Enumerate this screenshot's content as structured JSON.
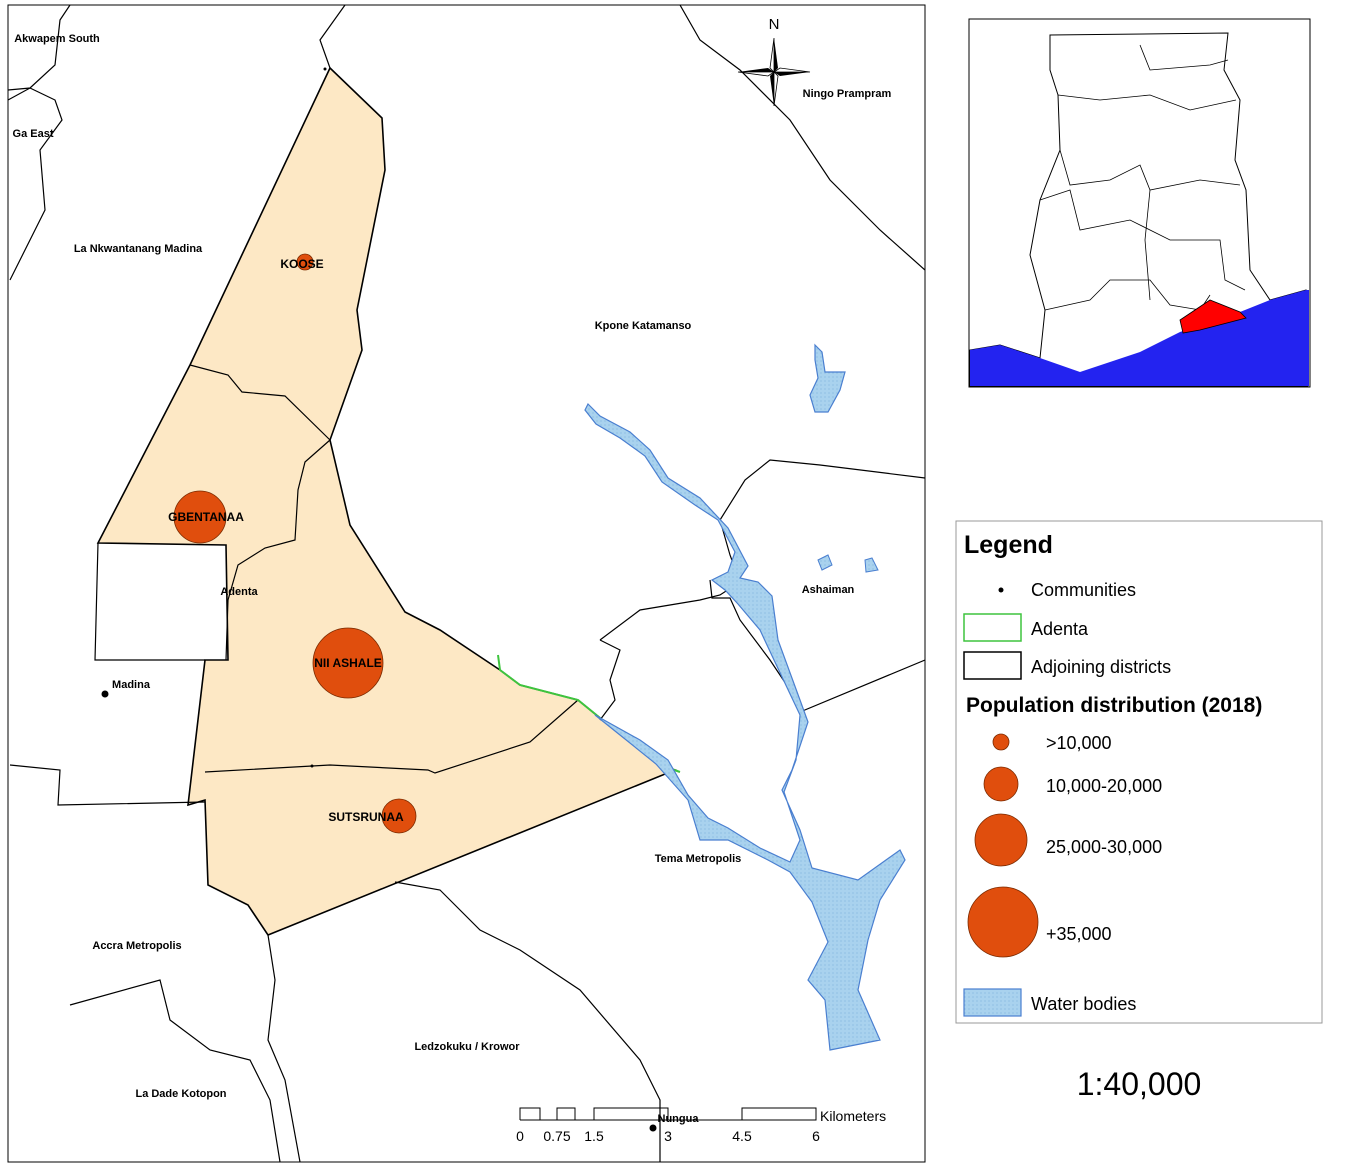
{
  "map": {
    "north": "N",
    "district_labels": [
      "Akwapem South",
      "Ga East",
      "La Nkwantanang Madina",
      "Kpone Katamanso",
      "Ningo Prampram",
      "Ashaiman",
      "Tema Metropolis",
      "Accra Metropolis",
      "Ledzokuku / Krowor",
      "La Dade Kotopon",
      "Adenta"
    ],
    "community_labels": [
      "KOOSE",
      "GBENTANAA",
      "NII ASHALE",
      "SUTSRUNAA",
      "Madina",
      "Nungua"
    ]
  },
  "legend": {
    "title": "Legend",
    "items": [
      "Communities",
      "Adenta",
      "Adjoining districts"
    ],
    "population_title": "Population distribution (2018)",
    "population_classes": [
      ">10,000",
      "10,000-20,000",
      "25,000-30,000",
      "+35,000"
    ],
    "water": "Water bodies"
  },
  "scale_bar": {
    "ticks": [
      "0",
      "0.75",
      "1.5",
      "3",
      "4.5",
      "6"
    ],
    "unit": "Kilometers"
  },
  "scale_ratio": "1:40,000"
}
